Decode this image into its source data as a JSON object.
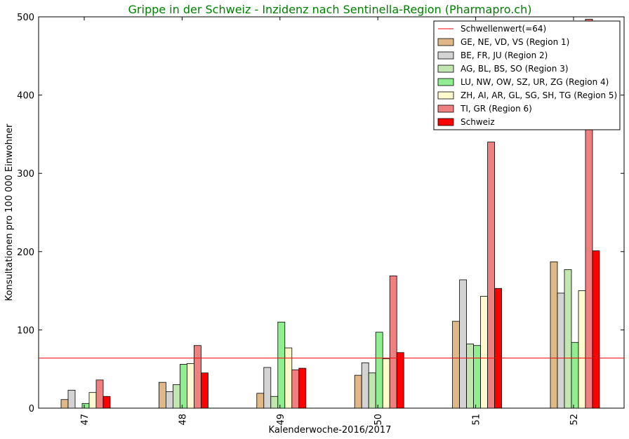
{
  "chart_data": {
    "type": "bar",
    "title": "Grippe in der Schweiz - Inzidenz nach Sentinella-Region (Pharmapro.ch)",
    "xlabel": "Kalenderwoche-2016/2017",
    "ylabel": "Konsultationen pro 100 000 Einwohner",
    "ylim": [
      0,
      500
    ],
    "yticks": [
      0,
      100,
      200,
      300,
      400,
      500
    ],
    "categories": [
      "47",
      "48",
      "49",
      "50",
      "51",
      "52"
    ],
    "threshold": {
      "label": "Schwellenwert(=64)",
      "value": 64,
      "color": "#ff0000"
    },
    "series": [
      {
        "name": "GE, NE, VD, VS (Region 1)",
        "color": "#deb887",
        "values": [
          11,
          33,
          19,
          42,
          111,
          187
        ]
      },
      {
        "name": "BE, FR, JU (Region 2)",
        "color": "#d3d3d3",
        "values": [
          23,
          21,
          52,
          58,
          164,
          147
        ]
      },
      {
        "name": "AG, BL, BS, SO (Region 3)",
        "color": "#c1e6b0",
        "values": [
          0,
          30,
          15,
          45,
          82,
          177
        ]
      },
      {
        "name": "LU, NW, OW, SZ, UR, ZG (Region 4)",
        "color": "#90ee90",
        "values": [
          6,
          56,
          110,
          97,
          80,
          84
        ]
      },
      {
        "name": "ZH, AI, AR, GL, SG, SH, TG (Region 5)",
        "color": "#fffacd",
        "values": [
          20,
          57,
          77,
          63,
          143,
          150
        ]
      },
      {
        "name": "TI, GR (Region 6)",
        "color": "#f08080",
        "values": [
          36,
          80,
          49,
          169,
          340,
          497
        ]
      },
      {
        "name": "Schweiz",
        "color": "#ff0000",
        "values": [
          15,
          45,
          51,
          71,
          153,
          201
        ]
      }
    ],
    "grid": false,
    "legend_position": "top-right",
    "title_color": "#008000"
  }
}
